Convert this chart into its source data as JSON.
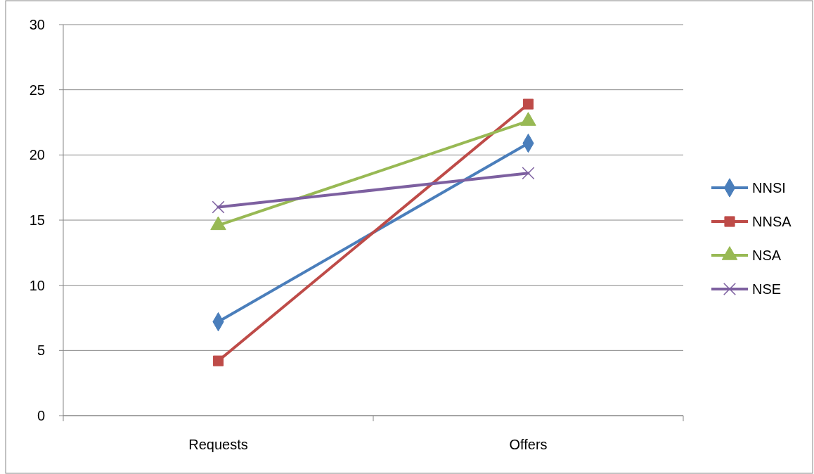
{
  "chart_data": {
    "type": "line",
    "categories": [
      "Requests",
      "Offers"
    ],
    "series": [
      {
        "name": "NNSI",
        "color": "#4a7ebb",
        "marker": "diamond",
        "values": [
          7.2,
          20.9
        ]
      },
      {
        "name": "NNSA",
        "color": "#be4b48",
        "marker": "square",
        "values": [
          4.2,
          23.9
        ]
      },
      {
        "name": "NSA",
        "color": "#98b954",
        "marker": "triangle",
        "values": [
          14.6,
          22.6
        ]
      },
      {
        "name": "NSE",
        "color": "#7d60a0",
        "marker": "cross",
        "values": [
          16.0,
          18.6
        ]
      }
    ],
    "ylim": [
      0,
      30
    ],
    "yticks": [
      0,
      5,
      10,
      15,
      20,
      25,
      30
    ],
    "grid": "y",
    "legend": "right",
    "line_style": "solid"
  }
}
